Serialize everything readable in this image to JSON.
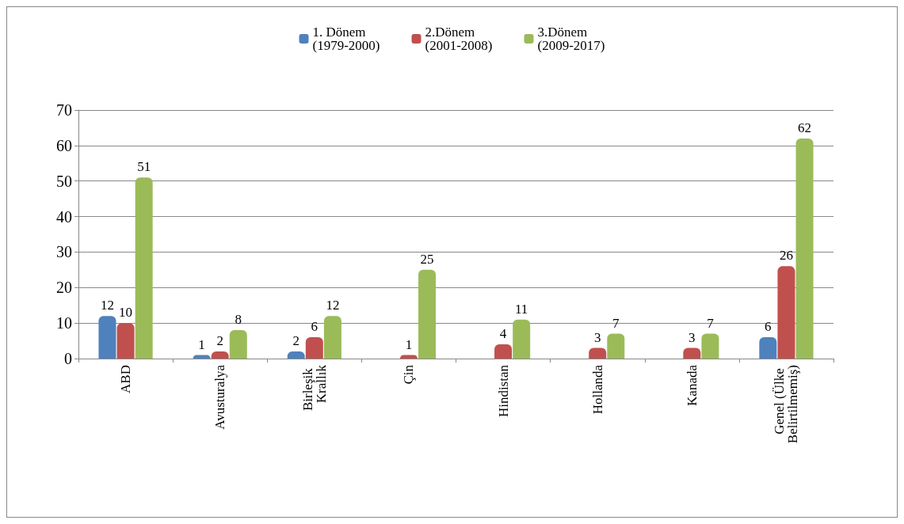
{
  "chart_data": {
    "type": "bar",
    "categories": [
      "ABD",
      "Avusturalya",
      "Birleşik Krallık",
      "Çin",
      "Hindistan",
      "Hollanda",
      "Kanada",
      "Genel (Ülke Belirtilmemiş)"
    ],
    "series": [
      {
        "name": "1. Dönem\n(1979-2000)",
        "color": "#4f81bd",
        "values": [
          12,
          1,
          2,
          null,
          null,
          null,
          null,
          6
        ]
      },
      {
        "name": "2.Dönem\n(2001-2008)",
        "color": "#c0504d",
        "values": [
          10,
          2,
          6,
          1,
          4,
          3,
          3,
          26
        ]
      },
      {
        "name": "3.Dönem\n(2009-2017)",
        "color": "#9bbb59",
        "values": [
          51,
          8,
          12,
          25,
          11,
          7,
          7,
          62
        ]
      }
    ],
    "ylim": [
      0,
      70
    ],
    "yticks": [
      0,
      10,
      20,
      30,
      40,
      50,
      60,
      70
    ],
    "grid": "y",
    "legend": "top",
    "data_labels": true
  }
}
